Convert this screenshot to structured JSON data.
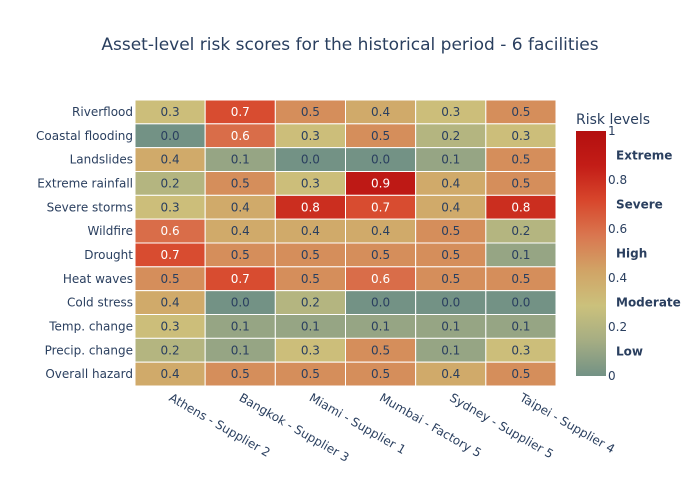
{
  "chart_data": {
    "type": "heatmap",
    "title": "Asset-level risk scores for the historical period - 6 facilities",
    "x_categories": [
      "Athens - Supplier 2",
      "Bangkok - Supplier 3",
      "Miami - Supplier 1",
      "Mumbai - Factory 5",
      "Sydney - Supplier 5",
      "Taipei - Supplier 4"
    ],
    "y_categories": [
      "Riverflood",
      "Coastal flooding",
      "Landslides",
      "Extreme rainfall",
      "Severe storms",
      "Wildfire",
      "Drought",
      "Heat waves",
      "Cold stress",
      "Temp. change",
      "Precip. change",
      "Overall hazard"
    ],
    "values": [
      [
        0.3,
        0.7,
        0.5,
        0.4,
        0.3,
        0.5
      ],
      [
        0.0,
        0.6,
        0.3,
        0.5,
        0.2,
        0.3
      ],
      [
        0.4,
        0.1,
        0.0,
        0.0,
        0.1,
        0.5
      ],
      [
        0.2,
        0.5,
        0.3,
        0.9,
        0.4,
        0.5
      ],
      [
        0.3,
        0.4,
        0.8,
        0.7,
        0.4,
        0.8
      ],
      [
        0.6,
        0.4,
        0.4,
        0.4,
        0.5,
        0.2
      ],
      [
        0.7,
        0.5,
        0.5,
        0.5,
        0.5,
        0.1
      ],
      [
        0.5,
        0.7,
        0.5,
        0.6,
        0.5,
        0.5
      ],
      [
        0.4,
        0.0,
        0.2,
        0.0,
        0.0,
        0.0
      ],
      [
        0.3,
        0.1,
        0.1,
        0.1,
        0.1,
        0.1
      ],
      [
        0.2,
        0.1,
        0.3,
        0.5,
        0.1,
        0.3
      ],
      [
        0.4,
        0.5,
        0.5,
        0.5,
        0.4,
        0.5
      ]
    ],
    "zlim": [
      0,
      1
    ],
    "colorbar": {
      "title": "Risk levels",
      "ticks": [
        "0",
        "0.2",
        "0.4",
        "0.6",
        "0.8",
        "1"
      ],
      "levels": [
        "Low",
        "Moderate",
        "High",
        "Severe",
        "Extreme"
      ]
    },
    "colorscale": [
      "#739285",
      "#a5ad83",
      "#cbc17c",
      "#d1a466",
      "#d97750",
      "#d8472c",
      "#c31d17",
      "#b30f0f"
    ]
  }
}
